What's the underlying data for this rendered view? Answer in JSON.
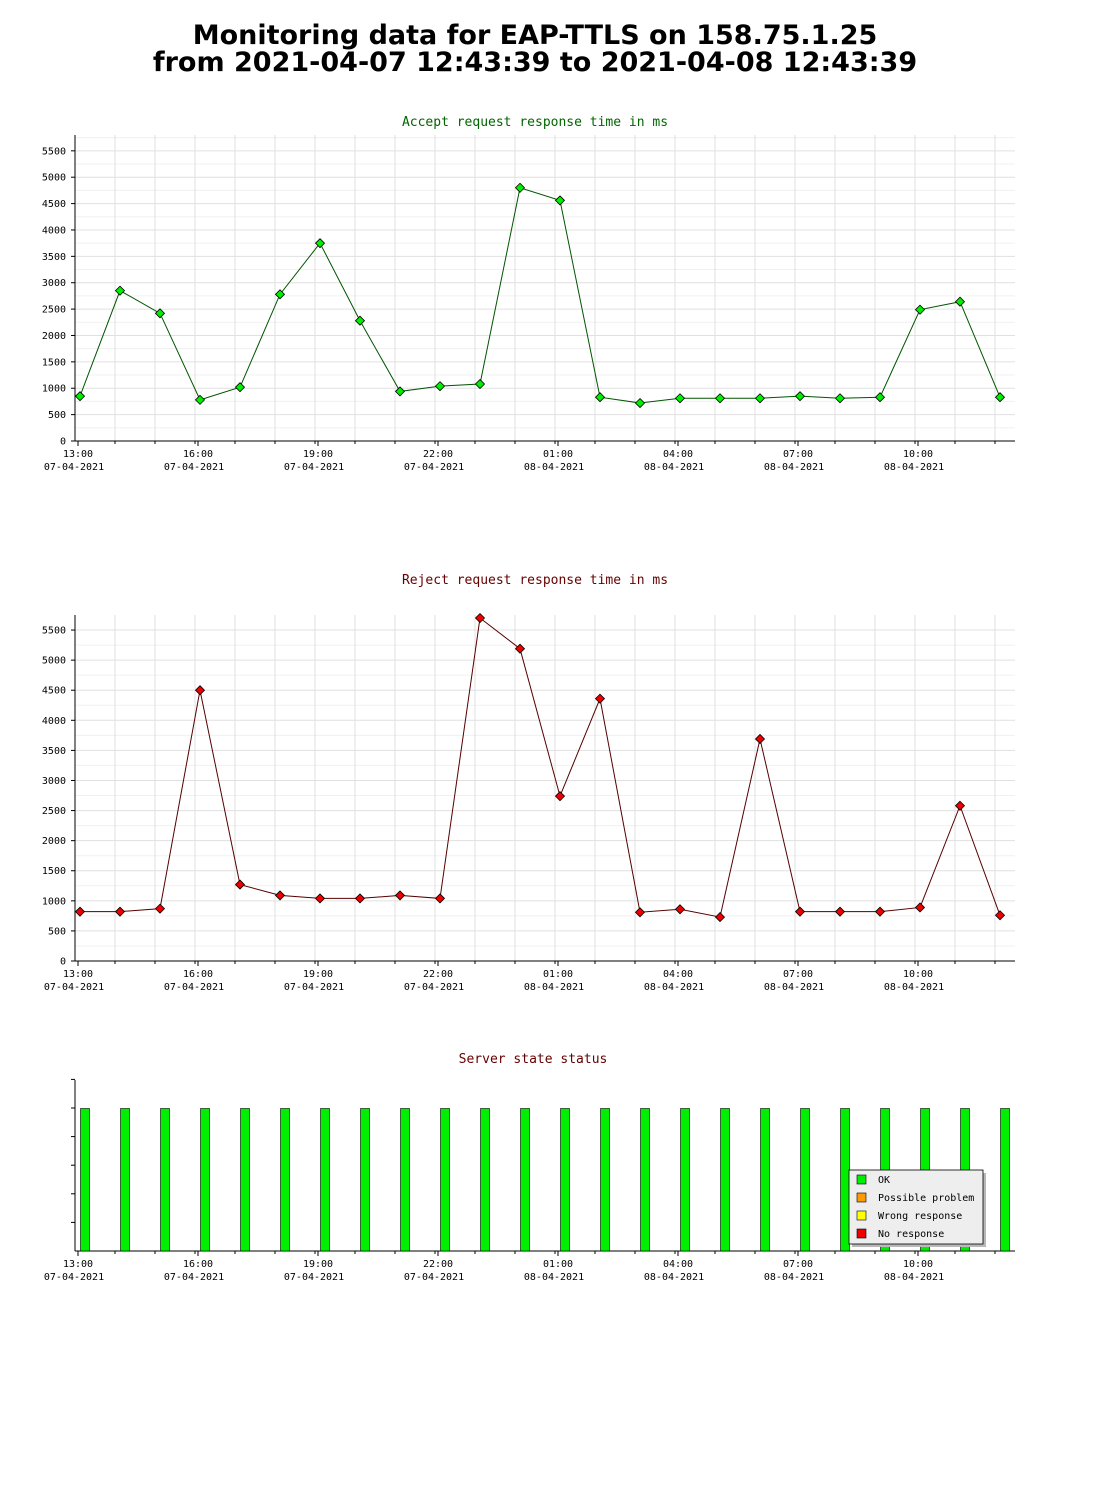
{
  "page": {
    "title_line1": "Monitoring data for EAP-TTLS on 158.75.1.25",
    "title_line2": "from 2021-04-07 12:43:39 to 2021-04-08 12:43:39"
  },
  "x_ticks": [
    {
      "time": "13:00",
      "date": "07-04-2021"
    },
    {
      "time": "16:00",
      "date": "07-04-2021"
    },
    {
      "time": "19:00",
      "date": "07-04-2021"
    },
    {
      "time": "22:00",
      "date": "07-04-2021"
    },
    {
      "time": "01:00",
      "date": "08-04-2021"
    },
    {
      "time": "04:00",
      "date": "08-04-2021"
    },
    {
      "time": "07:00",
      "date": "08-04-2021"
    },
    {
      "time": "10:00",
      "date": "08-04-2021"
    }
  ],
  "chart_data": [
    {
      "type": "line",
      "title": "Accept request response time in ms",
      "title_color": "#006600",
      "line_color": "#005500",
      "marker_color": "#00ee00",
      "x": [
        "13:00",
        "14:00",
        "15:00",
        "16:00",
        "17:00",
        "18:00",
        "19:00",
        "20:00",
        "21:00",
        "22:00",
        "23:00",
        "00:00",
        "01:00",
        "02:00",
        "03:00",
        "04:00",
        "05:00",
        "06:00",
        "07:00",
        "08:00",
        "09:00",
        "10:00",
        "11:00",
        "12:00"
      ],
      "values": [
        850,
        2850,
        2420,
        780,
        1020,
        2780,
        3750,
        2280,
        940,
        1040,
        1080,
        4800,
        4560,
        830,
        720,
        810,
        810,
        810,
        850,
        810,
        830,
        2490,
        2640,
        830
      ],
      "ylim": [
        0,
        5800
      ],
      "yticks": [
        0,
        500,
        1000,
        1500,
        2000,
        2500,
        3000,
        3500,
        4000,
        4500,
        5000,
        5500
      ],
      "grid": true
    },
    {
      "type": "line",
      "title": "Reject request response time in ms",
      "title_color": "#660000",
      "line_color": "#550000",
      "marker_color": "#ee0000",
      "x": [
        "13:00",
        "14:00",
        "15:00",
        "16:00",
        "17:00",
        "18:00",
        "19:00",
        "20:00",
        "21:00",
        "22:00",
        "23:00",
        "00:00",
        "01:00",
        "02:00",
        "03:00",
        "04:00",
        "05:00",
        "06:00",
        "07:00",
        "08:00",
        "09:00",
        "10:00",
        "11:00",
        "12:00"
      ],
      "values": [
        820,
        820,
        870,
        4500,
        1270,
        1090,
        1040,
        1040,
        1090,
        1040,
        5700,
        5190,
        2740,
        4360,
        810,
        860,
        730,
        3690,
        820,
        820,
        820,
        890,
        2580,
        760
      ],
      "ylim": [
        0,
        5750
      ],
      "yticks": [
        0,
        500,
        1000,
        1500,
        2000,
        2500,
        3000,
        3500,
        4000,
        4500,
        5000,
        5500
      ],
      "grid": true
    },
    {
      "type": "bar",
      "title": "Server state status",
      "title_color": "#660000",
      "x": [
        "13:00",
        "14:00",
        "15:00",
        "16:00",
        "17:00",
        "18:00",
        "19:00",
        "20:00",
        "21:00",
        "22:00",
        "23:00",
        "00:00",
        "01:00",
        "02:00",
        "03:00",
        "04:00",
        "05:00",
        "06:00",
        "07:00",
        "08:00",
        "09:00",
        "10:00",
        "11:00",
        "12:00"
      ],
      "series": [
        {
          "name": "OK",
          "color": "#00ee00",
          "values": [
            1,
            1,
            1,
            1,
            1,
            1,
            1,
            1,
            1,
            1,
            1,
            1,
            1,
            1,
            1,
            1,
            1,
            1,
            1,
            1,
            1,
            1,
            1,
            1
          ]
        }
      ],
      "legend": {
        "placement": "bottom-right",
        "entries": [
          {
            "label": "OK",
            "color": "#00ee00"
          },
          {
            "label": "Possible problem",
            "color": "#ff9900"
          },
          {
            "label": "Wrong response",
            "color": "#ffff00"
          },
          {
            "label": "No response",
            "color": "#ee0000"
          }
        ]
      },
      "ylim": [
        0,
        1.2
      ],
      "grid": false
    }
  ]
}
